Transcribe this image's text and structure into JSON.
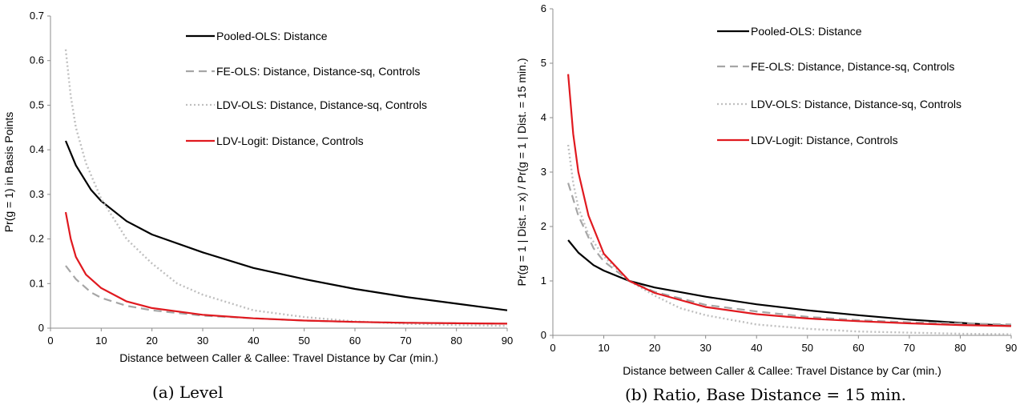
{
  "chart_data": [
    {
      "type": "line",
      "caption": "(a) Level",
      "xlabel": "Distance between Caller & Callee: Travel Distance by Car (min.)",
      "ylabel": "Pr(g = 1) in Basis Points",
      "xlim": [
        0,
        90
      ],
      "ylim": [
        0,
        0.7
      ],
      "xticks": [
        "0",
        "10",
        "20",
        "30",
        "40",
        "50",
        "60",
        "70",
        "80",
        "90"
      ],
      "yticks": [
        "0",
        "0.1",
        "0.2",
        "0.3",
        "0.4",
        "0.5",
        "0.6",
        "0.7"
      ],
      "legend_position": "top-right",
      "series": [
        {
          "name": "Pooled-OLS: Distance",
          "color": "#000000",
          "style": "solid",
          "x": [
            3,
            5,
            8,
            10,
            15,
            20,
            30,
            40,
            50,
            60,
            70,
            80,
            90
          ],
          "y": [
            0.42,
            0.365,
            0.31,
            0.285,
            0.24,
            0.21,
            0.17,
            0.135,
            0.11,
            0.088,
            0.07,
            0.055,
            0.04
          ]
        },
        {
          "name": "FE-OLS: Distance, Distance-sq, Controls",
          "color": "#a6a6a6",
          "style": "dashed",
          "x": [
            3,
            5,
            8,
            10,
            15,
            20,
            30,
            40,
            50,
            60,
            70,
            80,
            90
          ],
          "y": [
            0.14,
            0.11,
            0.08,
            0.068,
            0.05,
            0.04,
            0.028,
            0.022,
            0.017,
            0.014,
            0.012,
            0.011,
            0.01
          ]
        },
        {
          "name": "LDV-OLS: Distance, Distance-sq, Controls",
          "color": "#bfbfbf",
          "style": "dotted",
          "x": [
            3,
            4,
            5,
            7,
            10,
            15,
            20,
            25,
            30,
            40,
            50,
            60,
            70,
            80,
            90
          ],
          "y": [
            0.625,
            0.52,
            0.45,
            0.37,
            0.29,
            0.2,
            0.145,
            0.1,
            0.075,
            0.04,
            0.025,
            0.015,
            0.01,
            0.007,
            0.005
          ]
        },
        {
          "name": "LDV-Logit: Distance, Controls",
          "color": "#e0191f",
          "style": "solid",
          "x": [
            3,
            4,
            5,
            7,
            10,
            15,
            20,
            30,
            40,
            50,
            60,
            70,
            80,
            90
          ],
          "y": [
            0.26,
            0.2,
            0.16,
            0.12,
            0.09,
            0.06,
            0.045,
            0.03,
            0.022,
            0.017,
            0.014,
            0.012,
            0.011,
            0.01
          ]
        }
      ]
    },
    {
      "type": "line",
      "caption": "(b) Ratio, Base Distance = 15 min.",
      "xlabel": "Distance between Caller & Callee: Travel Distance by Car (min.)",
      "ylabel": "Pr(g = 1 | Dist. = x) / Pr(g = 1 | Dist. = 15 min.)",
      "xlim": [
        0,
        90
      ],
      "ylim": [
        0,
        6
      ],
      "xticks": [
        "0",
        "10",
        "20",
        "30",
        "40",
        "50",
        "60",
        "70",
        "80",
        "90"
      ],
      "yticks": [
        "0",
        "1",
        "2",
        "3",
        "4",
        "5",
        "6"
      ],
      "legend_position": "top-right",
      "series": [
        {
          "name": "Pooled-OLS: Distance",
          "color": "#000000",
          "style": "solid",
          "x": [
            3,
            5,
            8,
            10,
            15,
            20,
            30,
            40,
            50,
            60,
            70,
            80,
            90
          ],
          "y": [
            1.75,
            1.52,
            1.29,
            1.19,
            1.0,
            0.88,
            0.71,
            0.57,
            0.46,
            0.37,
            0.29,
            0.23,
            0.17
          ]
        },
        {
          "name": "FE-OLS: Distance, Distance-sq, Controls",
          "color": "#a6a6a6",
          "style": "dashed",
          "x": [
            3,
            5,
            8,
            10,
            15,
            20,
            30,
            40,
            50,
            60,
            70,
            80,
            90
          ],
          "y": [
            2.8,
            2.2,
            1.6,
            1.36,
            1.0,
            0.8,
            0.56,
            0.44,
            0.34,
            0.28,
            0.24,
            0.22,
            0.2
          ]
        },
        {
          "name": "LDV-OLS: Distance, Distance-sq, Controls",
          "color": "#bfbfbf",
          "style": "dotted",
          "x": [
            3,
            4,
            5,
            7,
            10,
            15,
            20,
            25,
            30,
            40,
            50,
            60,
            70,
            80,
            90
          ],
          "y": [
            3.5,
            2.8,
            2.35,
            1.85,
            1.45,
            1.0,
            0.73,
            0.5,
            0.37,
            0.2,
            0.12,
            0.07,
            0.05,
            0.03,
            0.02
          ]
        },
        {
          "name": "LDV-Logit: Distance, Controls",
          "color": "#e0191f",
          "style": "solid",
          "x": [
            3,
            4,
            5,
            7,
            10,
            15,
            20,
            30,
            40,
            50,
            60,
            70,
            80,
            90
          ],
          "y": [
            4.8,
            3.7,
            3.0,
            2.2,
            1.5,
            1.0,
            0.78,
            0.52,
            0.39,
            0.31,
            0.26,
            0.22,
            0.19,
            0.17
          ]
        }
      ]
    }
  ]
}
